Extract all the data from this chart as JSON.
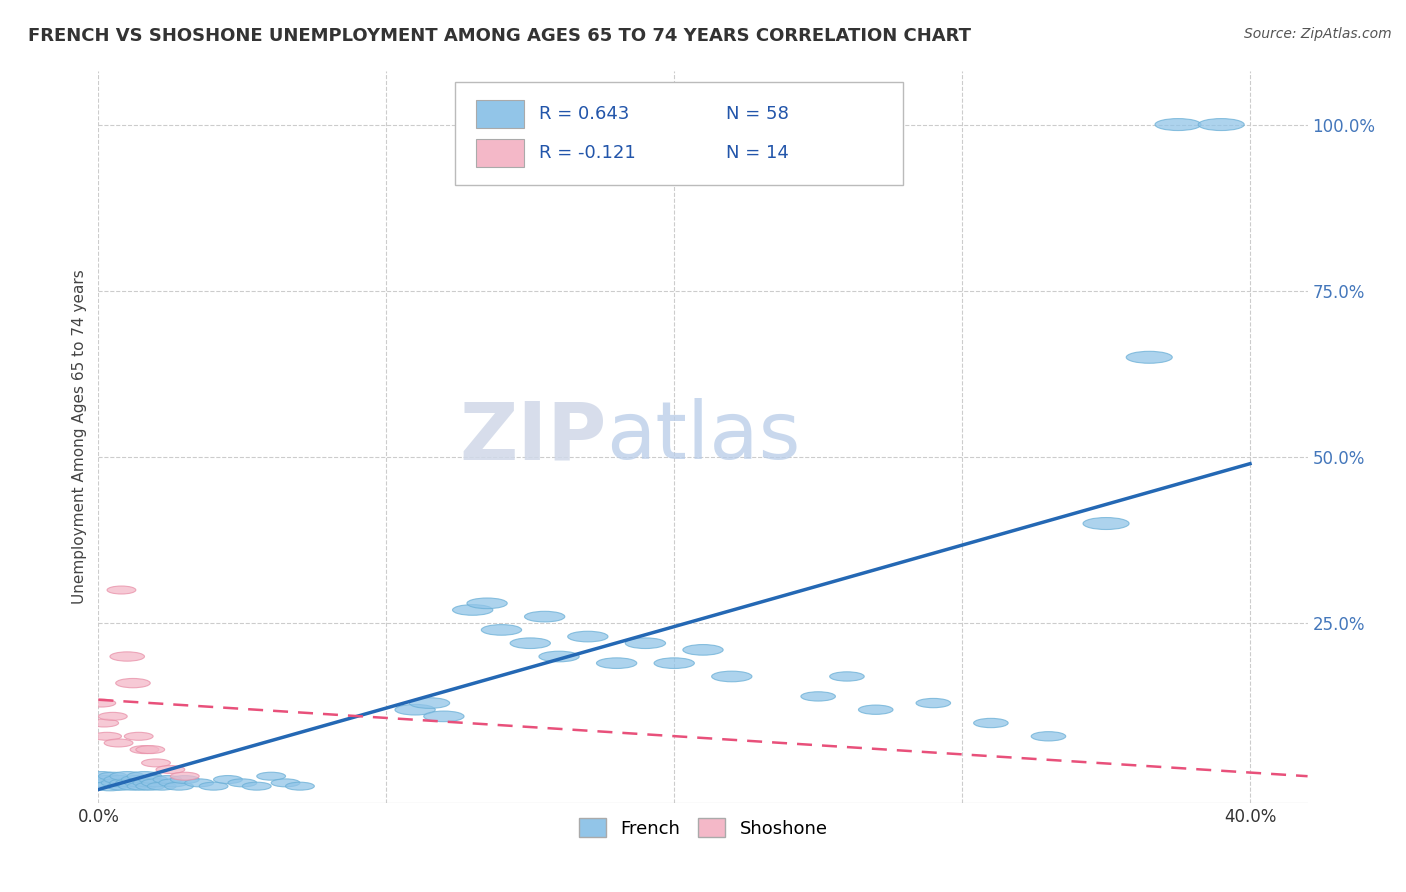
{
  "title": "FRENCH VS SHOSHONE UNEMPLOYMENT AMONG AGES 65 TO 74 YEARS CORRELATION CHART",
  "source": "Source: ZipAtlas.com",
  "ylabel": "Unemployment Among Ages 65 to 74 years",
  "xlim": [
    0.0,
    0.42
  ],
  "ylim": [
    -0.02,
    1.08
  ],
  "xtick_positions": [
    0.0,
    0.1,
    0.2,
    0.3,
    0.4
  ],
  "xticklabels": [
    "0.0%",
    "",
    "",
    "",
    "40.0%"
  ],
  "ytick_positions": [
    0.25,
    0.5,
    0.75,
    1.0
  ],
  "ytick_labels": [
    "25.0%",
    "50.0%",
    "75.0%",
    "100.0%"
  ],
  "french_color": "#92C5E8",
  "french_edge_color": "#6AAFD6",
  "shoshone_color": "#F4B8C8",
  "shoshone_edge_color": "#E890A8",
  "french_line_color": "#2468B4",
  "shoshone_line_color": "#E8507A",
  "legend_r_french": "R = 0.643",
  "legend_n_french": "N = 58",
  "legend_r_shoshone": "R = -0.121",
  "legend_n_shoshone": "N = 14",
  "watermark_zip": "ZIP",
  "watermark_atlas": "atlas",
  "background_color": "#FFFFFF",
  "grid_color": "#CCCCCC",
  "french_points": [
    [
      0.001,
      0.02
    ],
    [
      0.002,
      0.01
    ],
    [
      0.003,
      0.015
    ],
    [
      0.004,
      0.005
    ],
    [
      0.005,
      0.02
    ],
    [
      0.006,
      0.01
    ],
    [
      0.007,
      0.015
    ],
    [
      0.008,
      0.005
    ],
    [
      0.009,
      0.01
    ],
    [
      0.01,
      0.02
    ],
    [
      0.011,
      0.01
    ],
    [
      0.012,
      0.005
    ],
    [
      0.013,
      0.015
    ],
    [
      0.014,
      0.01
    ],
    [
      0.015,
      0.005
    ],
    [
      0.016,
      0.02
    ],
    [
      0.017,
      0.01
    ],
    [
      0.018,
      0.005
    ],
    [
      0.019,
      0.015
    ],
    [
      0.02,
      0.01
    ],
    [
      0.022,
      0.005
    ],
    [
      0.024,
      0.015
    ],
    [
      0.026,
      0.01
    ],
    [
      0.028,
      0.005
    ],
    [
      0.03,
      0.015
    ],
    [
      0.035,
      0.01
    ],
    [
      0.04,
      0.005
    ],
    [
      0.045,
      0.015
    ],
    [
      0.05,
      0.01
    ],
    [
      0.055,
      0.005
    ],
    [
      0.06,
      0.02
    ],
    [
      0.065,
      0.01
    ],
    [
      0.07,
      0.005
    ],
    [
      0.11,
      0.12
    ],
    [
      0.115,
      0.13
    ],
    [
      0.12,
      0.11
    ],
    [
      0.13,
      0.27
    ],
    [
      0.135,
      0.28
    ],
    [
      0.14,
      0.24
    ],
    [
      0.15,
      0.22
    ],
    [
      0.155,
      0.26
    ],
    [
      0.16,
      0.2
    ],
    [
      0.17,
      0.23
    ],
    [
      0.18,
      0.19
    ],
    [
      0.19,
      0.22
    ],
    [
      0.2,
      0.19
    ],
    [
      0.21,
      0.21
    ],
    [
      0.22,
      0.17
    ],
    [
      0.25,
      0.14
    ],
    [
      0.26,
      0.17
    ],
    [
      0.27,
      0.12
    ],
    [
      0.29,
      0.13
    ],
    [
      0.31,
      0.1
    ],
    [
      0.33,
      0.08
    ],
    [
      0.35,
      0.4
    ],
    [
      0.365,
      0.65
    ],
    [
      0.375,
      1.0
    ],
    [
      0.39,
      1.0
    ]
  ],
  "french_widths": [
    0.012,
    0.01,
    0.01,
    0.012,
    0.01,
    0.01,
    0.01,
    0.01,
    0.01,
    0.012,
    0.01,
    0.01,
    0.01,
    0.01,
    0.01,
    0.012,
    0.01,
    0.01,
    0.01,
    0.01,
    0.01,
    0.01,
    0.01,
    0.01,
    0.01,
    0.01,
    0.01,
    0.01,
    0.01,
    0.01,
    0.01,
    0.01,
    0.01,
    0.014,
    0.014,
    0.014,
    0.014,
    0.014,
    0.014,
    0.014,
    0.014,
    0.014,
    0.014,
    0.014,
    0.014,
    0.014,
    0.014,
    0.014,
    0.012,
    0.012,
    0.012,
    0.012,
    0.012,
    0.012,
    0.016,
    0.016,
    0.016,
    0.016
  ],
  "french_heights": [
    0.014,
    0.012,
    0.012,
    0.014,
    0.012,
    0.012,
    0.012,
    0.012,
    0.012,
    0.014,
    0.012,
    0.012,
    0.012,
    0.012,
    0.012,
    0.014,
    0.012,
    0.012,
    0.012,
    0.012,
    0.012,
    0.012,
    0.012,
    0.012,
    0.012,
    0.012,
    0.012,
    0.012,
    0.012,
    0.012,
    0.012,
    0.012,
    0.012,
    0.016,
    0.016,
    0.016,
    0.016,
    0.016,
    0.016,
    0.016,
    0.016,
    0.016,
    0.016,
    0.016,
    0.016,
    0.016,
    0.016,
    0.016,
    0.014,
    0.014,
    0.014,
    0.014,
    0.014,
    0.014,
    0.018,
    0.018,
    0.018,
    0.018
  ],
  "shoshone_points": [
    [
      0.001,
      0.13
    ],
    [
      0.002,
      0.1
    ],
    [
      0.003,
      0.08
    ],
    [
      0.005,
      0.11
    ],
    [
      0.007,
      0.07
    ],
    [
      0.008,
      0.3
    ],
    [
      0.01,
      0.2
    ],
    [
      0.012,
      0.16
    ],
    [
      0.014,
      0.08
    ],
    [
      0.016,
      0.06
    ],
    [
      0.018,
      0.06
    ],
    [
      0.02,
      0.04
    ],
    [
      0.025,
      0.03
    ],
    [
      0.03,
      0.02
    ]
  ],
  "shoshone_widths": [
    0.01,
    0.01,
    0.01,
    0.01,
    0.01,
    0.01,
    0.012,
    0.012,
    0.01,
    0.01,
    0.01,
    0.01,
    0.01,
    0.01
  ],
  "shoshone_heights": [
    0.012,
    0.012,
    0.012,
    0.012,
    0.012,
    0.012,
    0.014,
    0.014,
    0.012,
    0.012,
    0.012,
    0.012,
    0.012,
    0.012
  ],
  "french_trend": [
    0.0,
    0.0,
    0.4,
    0.49
  ],
  "shoshone_trend": [
    0.0,
    0.135,
    0.42,
    0.02
  ]
}
